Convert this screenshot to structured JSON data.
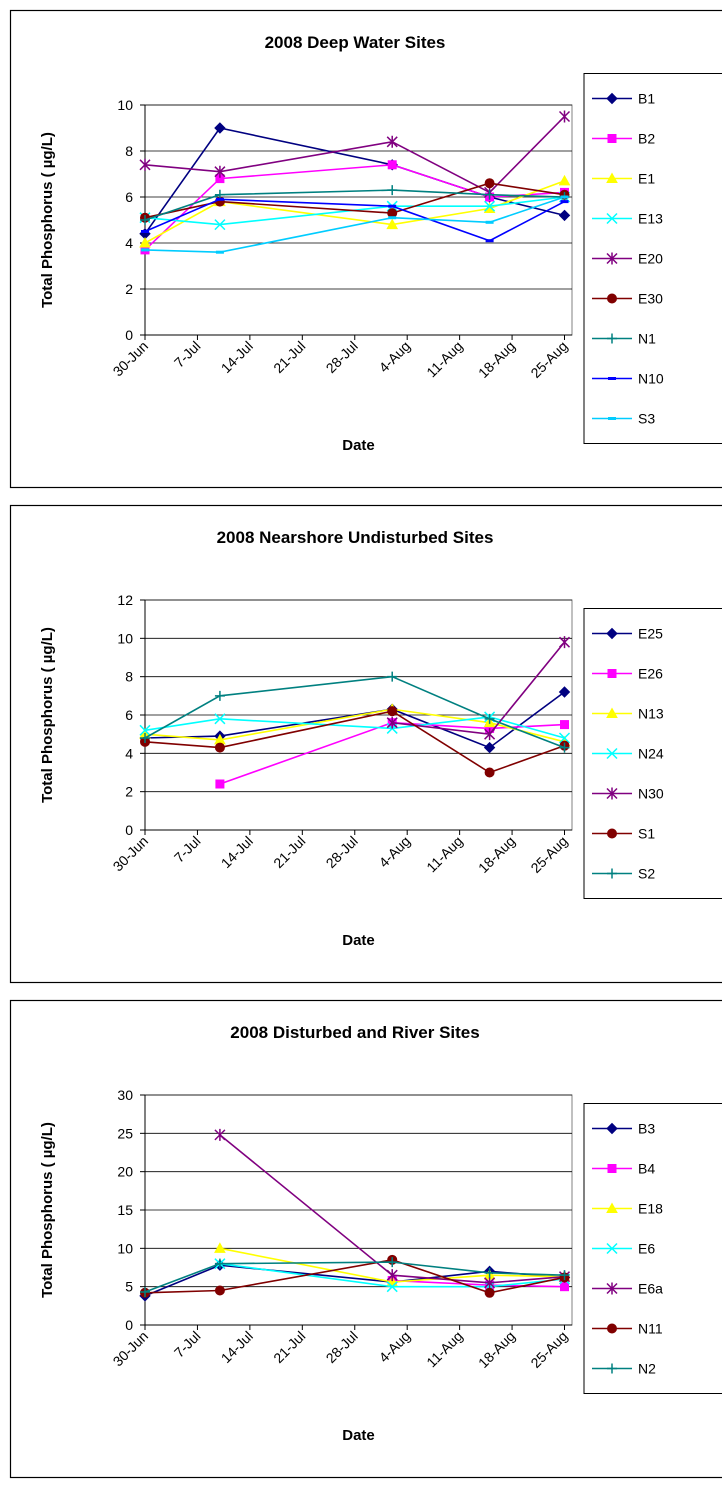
{
  "chart_data": [
    {
      "type": "line",
      "title": "2008 Deep Water Sites",
      "x_label": "Date",
      "y_label": "Total Phosphorus ( µg/L)",
      "x": [
        "30-Jun",
        "10-Jul",
        "2-Aug",
        "15-Aug",
        "25-Aug"
      ],
      "xlim": [
        "30-Jun",
        "26-Aug"
      ],
      "xticks": [
        "30-Jun",
        "7-Jul",
        "14-Jul",
        "21-Jul",
        "28-Jul",
        "4-Aug",
        "11-Aug",
        "18-Aug",
        "25-Aug"
      ],
      "ylim": [
        0,
        10
      ],
      "yticks": [
        0,
        2,
        4,
        6,
        8,
        10
      ],
      "grid": true,
      "legend": "right",
      "series": [
        {
          "name": "B1",
          "color": "#000080",
          "marker": "diamond",
          "values": [
            4.4,
            9.0,
            7.4,
            6.0,
            5.2
          ]
        },
        {
          "name": "B2",
          "color": "#ff00ff",
          "marker": "square",
          "values": [
            3.7,
            6.8,
            7.4,
            6.0,
            6.2
          ]
        },
        {
          "name": "E1",
          "color": "#ffff00",
          "marker": "triangle",
          "values": [
            4.0,
            5.8,
            4.8,
            5.5,
            6.7
          ]
        },
        {
          "name": "E13",
          "color": "#00ffff",
          "marker": "x",
          "values": [
            5.1,
            4.8,
            5.6,
            5.6,
            6.0
          ]
        },
        {
          "name": "E20",
          "color": "#800080",
          "marker": "star",
          "values": [
            7.4,
            7.1,
            8.4,
            6.2,
            9.5
          ]
        },
        {
          "name": "E30",
          "color": "#800000",
          "marker": "circle",
          "values": [
            5.1,
            5.8,
            5.3,
            6.6,
            6.1
          ]
        },
        {
          "name": "N1",
          "color": "#008080",
          "marker": "plus",
          "values": [
            5.0,
            6.1,
            6.3,
            6.1,
            6.0
          ]
        },
        {
          "name": "N10",
          "color": "#0000ff",
          "marker": "dash",
          "values": [
            4.5,
            5.9,
            5.6,
            4.1,
            5.8
          ]
        },
        {
          "name": "S3",
          "color": "#00ccff",
          "marker": "dash",
          "values": [
            3.7,
            3.6,
            5.1,
            4.9,
            6.0
          ]
        }
      ]
    },
    {
      "type": "line",
      "title": "2008 Nearshore Undisturbed Sites",
      "x_label": "Date",
      "y_label": "Total Phosphorus ( µg/L)",
      "x": [
        "30-Jun",
        "10-Jul",
        "2-Aug",
        "15-Aug",
        "25-Aug"
      ],
      "xlim": [
        "30-Jun",
        "26-Aug"
      ],
      "xticks": [
        "30-Jun",
        "7-Jul",
        "14-Jul",
        "21-Jul",
        "28-Jul",
        "4-Aug",
        "11-Aug",
        "18-Aug",
        "25-Aug"
      ],
      "ylim": [
        0,
        12
      ],
      "yticks": [
        0,
        2,
        4,
        6,
        8,
        10,
        12
      ],
      "grid": true,
      "legend": "right",
      "series": [
        {
          "name": "E25",
          "color": "#000080",
          "marker": "diamond",
          "values": [
            4.8,
            4.9,
            6.3,
            4.3,
            7.2
          ]
        },
        {
          "name": "E26",
          "color": "#ff00ff",
          "marker": "square",
          "values": [
            null,
            2.4,
            5.6,
            5.3,
            5.5
          ]
        },
        {
          "name": "N13",
          "color": "#ffff00",
          "marker": "triangle",
          "values": [
            5.0,
            4.7,
            6.3,
            5.6,
            4.6
          ]
        },
        {
          "name": "N24",
          "color": "#00ffff",
          "marker": "x",
          "values": [
            5.2,
            5.8,
            5.3,
            5.9,
            4.8
          ]
        },
        {
          "name": "N30",
          "color": "#800080",
          "marker": "star",
          "values": [
            null,
            null,
            5.6,
            5.0,
            9.8
          ]
        },
        {
          "name": "S1",
          "color": "#800000",
          "marker": "circle",
          "values": [
            4.6,
            4.3,
            6.2,
            3.0,
            4.4
          ]
        },
        {
          "name": "S2",
          "color": "#008080",
          "marker": "plus",
          "values": [
            4.8,
            7.0,
            8.0,
            5.8,
            4.3
          ]
        }
      ]
    },
    {
      "type": "line",
      "title": "2008 Disturbed and River Sites",
      "x_label": "Date",
      "y_label": "Total Phosphorus ( µg/L)",
      "x": [
        "30-Jun",
        "10-Jul",
        "2-Aug",
        "15-Aug",
        "25-Aug"
      ],
      "xlim": [
        "30-Jun",
        "26-Aug"
      ],
      "xticks": [
        "30-Jun",
        "7-Jul",
        "14-Jul",
        "21-Jul",
        "28-Jul",
        "4-Aug",
        "11-Aug",
        "18-Aug",
        "25-Aug"
      ],
      "ylim": [
        0,
        30
      ],
      "yticks": [
        0,
        5,
        10,
        15,
        20,
        25,
        30
      ],
      "grid": true,
      "legend": "right",
      "series": [
        {
          "name": "B3",
          "color": "#000080",
          "marker": "diamond",
          "values": [
            3.8,
            7.8,
            5.6,
            7.0,
            6.2
          ]
        },
        {
          "name": "B4",
          "color": "#ff00ff",
          "marker": "square",
          "values": [
            null,
            null,
            5.8,
            5.2,
            5.0
          ]
        },
        {
          "name": "E18",
          "color": "#ffff00",
          "marker": "triangle",
          "values": [
            null,
            10.0,
            5.6,
            6.5,
            6.3
          ]
        },
        {
          "name": "E6",
          "color": "#00ffff",
          "marker": "x",
          "values": [
            null,
            8.0,
            5.0,
            5.0,
            6.0
          ]
        },
        {
          "name": "E6a",
          "color": "#800080",
          "marker": "star",
          "values": [
            null,
            24.8,
            6.5,
            5.5,
            6.3
          ]
        },
        {
          "name": "N11",
          "color": "#800000",
          "marker": "circle",
          "values": [
            4.2,
            4.5,
            8.5,
            4.2,
            6.2
          ]
        },
        {
          "name": "N2",
          "color": "#008080",
          "marker": "plus",
          "values": [
            4.3,
            8.0,
            8.2,
            6.8,
            6.5
          ]
        }
      ]
    }
  ]
}
